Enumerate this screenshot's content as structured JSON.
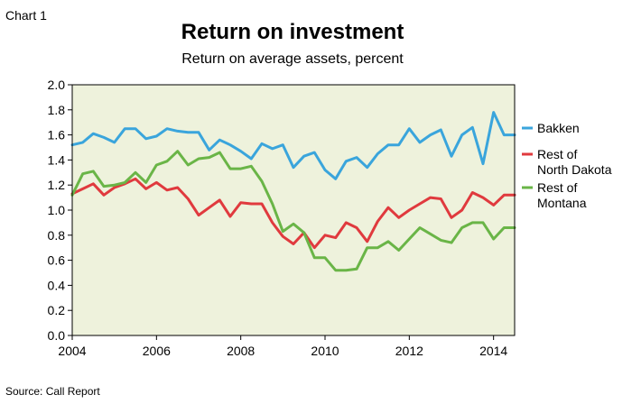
{
  "chart_label": "Chart 1",
  "source": "Source: Call Report",
  "chart_data": {
    "type": "line",
    "title": "Return on investment",
    "subtitle": "Return on average assets, percent",
    "xlabel": "",
    "ylabel": "",
    "xlim": [
      2004.0,
      2014.5
    ],
    "ylim": [
      0.0,
      2.0
    ],
    "grid": false,
    "legend_position": "right",
    "background_color": "#eef2dc",
    "x_ticks": [
      2004,
      2006,
      2008,
      2010,
      2012,
      2014
    ],
    "x_tick_labels": [
      "2004",
      "2006",
      "2008",
      "2010",
      "2012",
      "2014"
    ],
    "y_ticks": [
      0.0,
      0.2,
      0.4,
      0.6,
      0.8,
      1.0,
      1.2,
      1.4,
      1.6,
      1.8,
      2.0
    ],
    "y_tick_labels": [
      "0.0",
      "0.2",
      "0.4",
      "0.6",
      "0.8",
      "1.0",
      "1.2",
      "1.4",
      "1.6",
      "1.8",
      "2.0"
    ],
    "x": [
      2004.0,
      2004.25,
      2004.5,
      2004.75,
      2005.0,
      2005.25,
      2005.5,
      2005.75,
      2006.0,
      2006.25,
      2006.5,
      2006.75,
      2007.0,
      2007.25,
      2007.5,
      2007.75,
      2008.0,
      2008.25,
      2008.5,
      2008.75,
      2009.0,
      2009.25,
      2009.5,
      2009.75,
      2010.0,
      2010.25,
      2010.5,
      2010.75,
      2011.0,
      2011.25,
      2011.5,
      2011.75,
      2012.0,
      2012.25,
      2012.5,
      2012.75,
      2013.0,
      2013.25,
      2013.5,
      2013.75,
      2014.0,
      2014.25,
      2014.5
    ],
    "series": [
      {
        "name": "Bakken",
        "legend_lines": [
          "Bakken"
        ],
        "color": "#3aa5dc",
        "values": [
          1.52,
          1.54,
          1.61,
          1.58,
          1.54,
          1.65,
          1.65,
          1.57,
          1.59,
          1.65,
          1.63,
          1.62,
          1.62,
          1.48,
          1.56,
          1.52,
          1.47,
          1.41,
          1.53,
          1.49,
          1.52,
          1.34,
          1.43,
          1.46,
          1.32,
          1.25,
          1.39,
          1.42,
          1.34,
          1.45,
          1.52,
          1.52,
          1.65,
          1.54,
          1.6,
          1.64,
          1.43,
          1.6,
          1.66,
          1.37,
          1.78,
          1.6,
          1.6
        ]
      },
      {
        "name": "Rest of North Dakota",
        "legend_lines": [
          "Rest of",
          "North Dakota"
        ],
        "color": "#e03a3e",
        "values": [
          1.13,
          1.17,
          1.21,
          1.12,
          1.18,
          1.21,
          1.25,
          1.17,
          1.22,
          1.16,
          1.18,
          1.09,
          0.96,
          1.02,
          1.08,
          0.95,
          1.06,
          1.05,
          1.05,
          0.9,
          0.79,
          0.73,
          0.82,
          0.7,
          0.8,
          0.78,
          0.9,
          0.86,
          0.75,
          0.91,
          1.02,
          0.94,
          1.0,
          1.05,
          1.1,
          1.09,
          0.94,
          1.0,
          1.14,
          1.1,
          1.04,
          1.12,
          1.12
        ]
      },
      {
        "name": "Rest of Montana",
        "legend_lines": [
          "Rest of",
          "Montana"
        ],
        "color": "#6ab547",
        "values": [
          1.12,
          1.29,
          1.31,
          1.19,
          1.2,
          1.22,
          1.3,
          1.22,
          1.36,
          1.39,
          1.47,
          1.36,
          1.41,
          1.42,
          1.46,
          1.33,
          1.33,
          1.35,
          1.23,
          1.05,
          0.83,
          0.89,
          0.82,
          0.62,
          0.62,
          0.52,
          0.52,
          0.53,
          0.7,
          0.7,
          0.75,
          0.68,
          0.77,
          0.86,
          0.81,
          0.76,
          0.74,
          0.86,
          0.9,
          0.9,
          0.77,
          0.86,
          0.86
        ]
      }
    ]
  }
}
